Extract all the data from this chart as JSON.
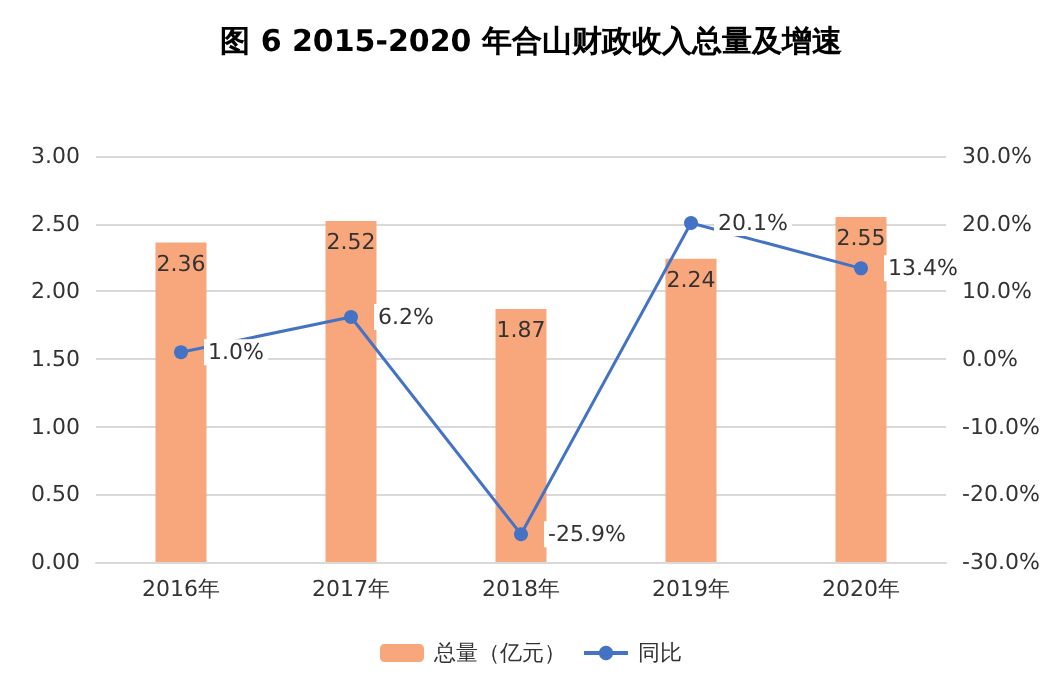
{
  "chart_data": {
    "type": "bar",
    "title": "图 6 2015-2020 年合山财政收入总量及增速",
    "categories": [
      "2016年",
      "2017年",
      "2018年",
      "2019年",
      "2020年"
    ],
    "series": [
      {
        "name": "总量（亿元）",
        "color": "#f8a67b",
        "values": [
          2.36,
          2.52,
          1.87,
          2.24,
          2.55
        ],
        "value_labels": [
          "2.36",
          "2.52",
          "1.87",
          "2.24",
          "2.55"
        ]
      },
      {
        "name": "同比",
        "type": "line",
        "axis": "y2",
        "color": "#4472c4",
        "values": [
          1.0,
          6.2,
          -25.9,
          20.1,
          13.4
        ],
        "value_labels": [
          "1.0%",
          "6.2%",
          "-25.9%",
          "20.1%",
          "13.4%"
        ]
      }
    ],
    "ylim": [
      0,
      3
    ],
    "yticks": [
      {
        "value": 0,
        "label": "0.00"
      },
      {
        "value": 0.5,
        "label": "0.50"
      },
      {
        "value": 1,
        "label": "1.00"
      },
      {
        "value": 1.5,
        "label": "1.50"
      },
      {
        "value": 2,
        "label": "2.00"
      },
      {
        "value": 2.5,
        "label": "2.50"
      },
      {
        "value": 3,
        "label": "3.00"
      }
    ],
    "y2lim": [
      -30,
      30
    ],
    "y2ticks": [
      {
        "value": -30,
        "label": "-30.0%"
      },
      {
        "value": -20,
        "label": "-20.0%"
      },
      {
        "value": -10,
        "label": "-10.0%"
      },
      {
        "value": 0,
        "label": "0.0%"
      },
      {
        "value": 10,
        "label": "10.0%"
      },
      {
        "value": 20,
        "label": "20.0%"
      },
      {
        "value": 30,
        "label": "30.0%"
      }
    ],
    "grid": "y",
    "legend": "bottom",
    "marker": "circle",
    "line_style": "solid"
  }
}
